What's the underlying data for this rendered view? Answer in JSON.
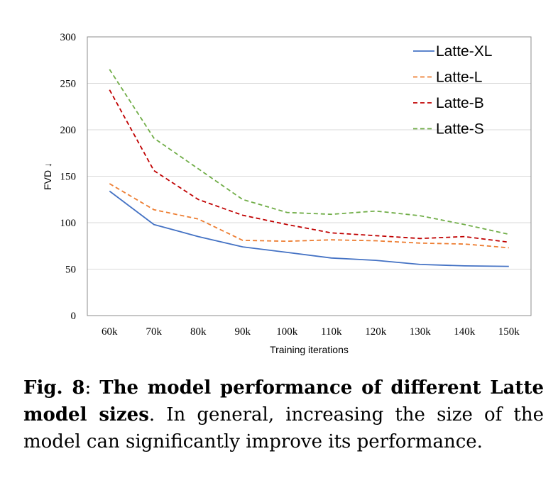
{
  "chart_data": {
    "type": "line",
    "title": "",
    "xlabel": "Training iterations",
    "ylabel": "FVD ↓",
    "categories": [
      "60k",
      "70k",
      "80k",
      "90k",
      "100k",
      "110k",
      "120k",
      "130k",
      "140k",
      "150k"
    ],
    "ylim": [
      0,
      300
    ],
    "yticks": [
      "0",
      "50",
      "100",
      "150",
      "200",
      "250",
      "300"
    ],
    "grid": true,
    "legend_position": "top-right",
    "series": [
      {
        "name": "Latte-XL",
        "color": "#4472c4",
        "dash": "solid",
        "values": [
          134,
          98,
          85,
          74,
          68,
          62,
          59.5,
          55,
          53.5,
          53
        ]
      },
      {
        "name": "Latte-L",
        "color": "#ed7d31",
        "dash": "dashed",
        "values": [
          142,
          114,
          104,
          81,
          80,
          81.5,
          80.5,
          78,
          77,
          73
        ]
      },
      {
        "name": "Latte-B",
        "color": "#c00000",
        "dash": "dashed",
        "values": [
          243,
          156,
          125,
          108,
          98,
          89,
          86,
          83,
          85,
          79
        ]
      },
      {
        "name": "Latte-S",
        "color": "#70ad47",
        "dash": "dashed",
        "values": [
          265,
          191,
          158,
          125,
          111,
          109,
          112.5,
          107.5,
          98,
          87.5
        ]
      }
    ]
  },
  "caption": {
    "label": "Fig. 8",
    "separator": ": ",
    "title": "The model performance of different Latte model sizes",
    "body": ". In general, increasing the size of the model can significantly improve its performance."
  }
}
